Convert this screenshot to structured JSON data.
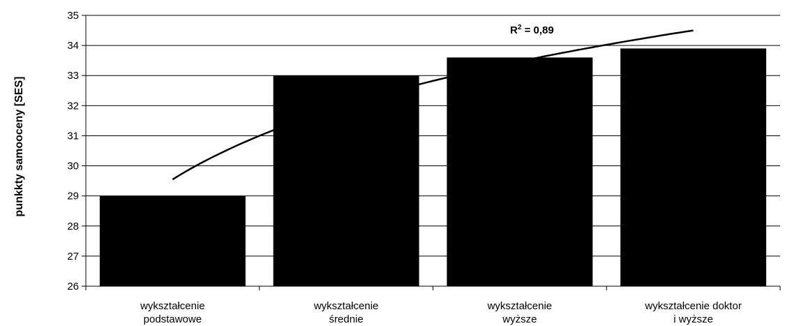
{
  "chart_data": {
    "type": "bar",
    "title": "",
    "xlabel": "",
    "ylabel": "punkkty samooceny [SES]",
    "ylim": [
      26,
      35
    ],
    "yticks": [
      26,
      27,
      28,
      29,
      30,
      31,
      32,
      33,
      34,
      35
    ],
    "grid": true,
    "categories": [
      [
        "wykształcenie",
        "podstawowe"
      ],
      [
        "wykształcenie",
        "średnie"
      ],
      [
        "wykształcenie",
        "wyższe"
      ],
      [
        "wykształcenie doktor",
        "i wyższe"
      ]
    ],
    "values": [
      29.0,
      33.0,
      33.6,
      33.9
    ],
    "bar_color": "#000000",
    "trendline": {
      "type": "log",
      "start": 29.55,
      "end": 34.5,
      "annotation_base": "R",
      "annotation_sup": "2",
      "annotation_rest": " = 0,89"
    }
  }
}
